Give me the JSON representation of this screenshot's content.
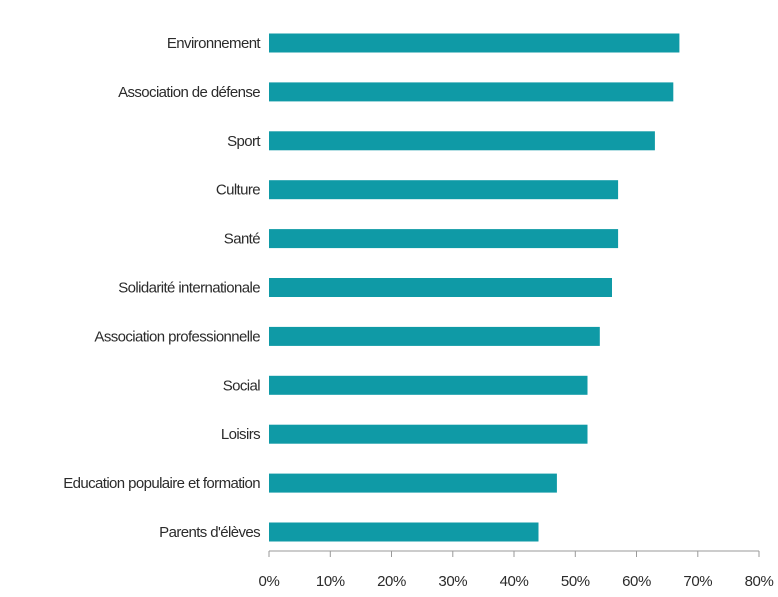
{
  "chart_data": {
    "type": "bar",
    "orientation": "horizontal",
    "categories": [
      "Environnement",
      "Association de défense",
      "Sport",
      "Culture",
      "Santé",
      "Solidarité internationale",
      "Association professionnelle",
      "Social",
      "Loisirs",
      "Education populaire et formation",
      "Parents d'élèves"
    ],
    "values": [
      67,
      66,
      63,
      57,
      57,
      56,
      54,
      52,
      52,
      47,
      44
    ],
    "value_unit": "%",
    "xlim": [
      0,
      80
    ],
    "x_ticks": [
      "0%",
      "10%",
      "20%",
      "30%",
      "40%",
      "50%",
      "60%",
      "70%",
      "80%"
    ],
    "title": "",
    "xlabel": "",
    "ylabel": "",
    "grid": false,
    "legend": "none",
    "bar_color": "#0f9aa6",
    "axis_color": "#9a9a9a",
    "text_color": "#2b2b2b"
  }
}
